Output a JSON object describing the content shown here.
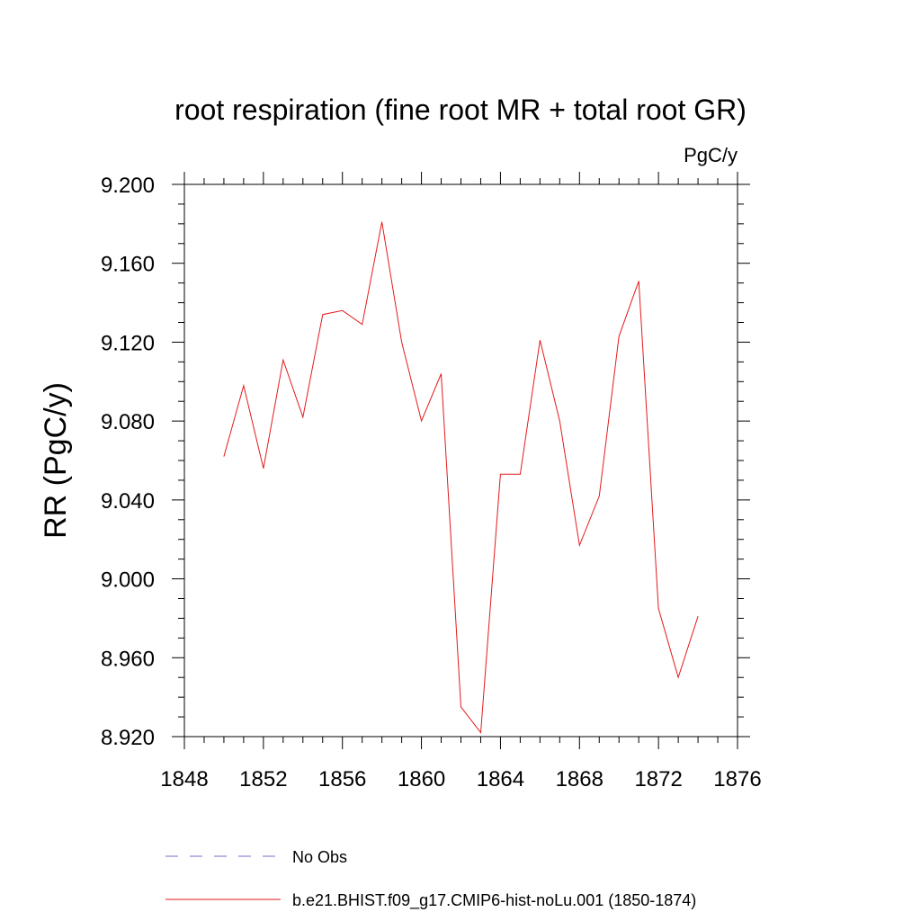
{
  "chart_data": {
    "type": "line",
    "title": "root respiration (fine root MR + total root GR)",
    "units_label": "PgC/y",
    "ylabel": "RR  (PgC/y)",
    "xlabel": "",
    "xlim": [
      1848,
      1876
    ],
    "ylim": [
      8.92,
      9.2
    ],
    "x_ticks": [
      "1848",
      "1852",
      "1856",
      "1860",
      "1864",
      "1868",
      "1872",
      "1876"
    ],
    "y_ticks": [
      "8.920",
      "8.960",
      "9.000",
      "9.040",
      "9.080",
      "9.120",
      "9.160",
      "9.200"
    ],
    "x_tick_values": [
      1848,
      1852,
      1856,
      1860,
      1864,
      1868,
      1872,
      1876
    ],
    "y_tick_values": [
      8.92,
      8.96,
      9.0,
      9.04,
      9.08,
      9.12,
      9.16,
      9.2
    ],
    "grid": false,
    "legend_position": "bottom",
    "legend": [
      {
        "label": "No Obs",
        "color": "#6f6fc8",
        "dashed": true
      },
      {
        "label": "b.e21.BHIST.f09_g17.CMIP6-hist-noLu.001 (1850-1874)",
        "color": "#e31a1c",
        "dashed": false
      }
    ],
    "series": [
      {
        "name": "b.e21.BHIST.f09_g17.CMIP6-hist-noLu.001 (1850-1874)",
        "color": "#e31a1c",
        "x": [
          1850,
          1851,
          1852,
          1853,
          1854,
          1855,
          1856,
          1857,
          1858,
          1859,
          1860,
          1861,
          1862,
          1863,
          1864,
          1865,
          1866,
          1867,
          1868,
          1869,
          1870,
          1871,
          1872,
          1873,
          1874
        ],
        "values": [
          9.062,
          9.098,
          9.056,
          9.111,
          9.082,
          9.134,
          9.136,
          9.129,
          9.181,
          9.12,
          9.08,
          9.104,
          8.935,
          8.922,
          9.053,
          9.053,
          9.121,
          9.08,
          9.017,
          9.042,
          9.123,
          9.151,
          8.985,
          8.95,
          8.981
        ]
      }
    ]
  }
}
